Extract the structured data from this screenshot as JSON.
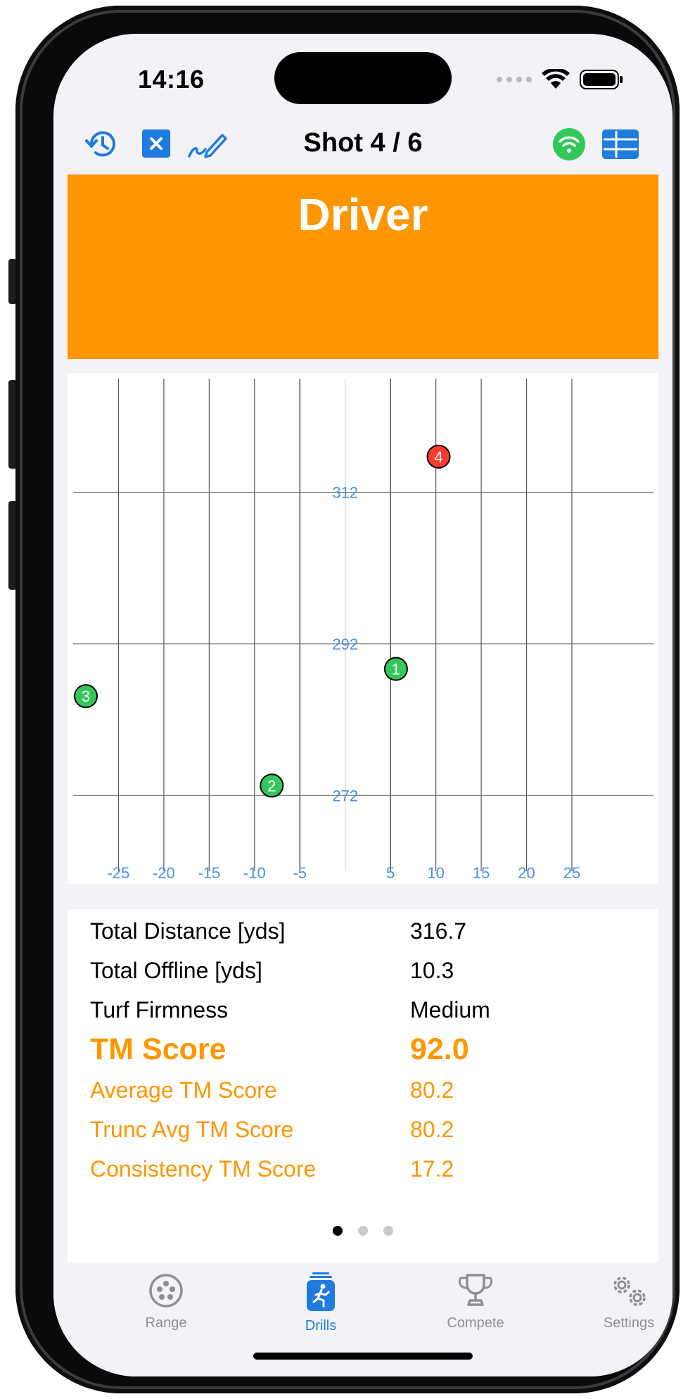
{
  "status_bar": {
    "time": "14:16"
  },
  "nav": {
    "title": "Shot 4 / 6"
  },
  "banner": {
    "club": "Driver"
  },
  "chart_data": {
    "type": "scatter",
    "x_ticks": [
      -25,
      -20,
      -15,
      -10,
      -5,
      5,
      10,
      15,
      20,
      25
    ],
    "y_ticks": [
      312,
      292,
      272
    ],
    "xlim": [
      -30,
      34
    ],
    "ylim": [
      262,
      327
    ],
    "grid": true,
    "points": [
      {
        "label": "1",
        "x": 5.6,
        "y": 288.7,
        "color": "#34c759"
      },
      {
        "label": "2",
        "x": -8.1,
        "y": 273.3,
        "color": "#34c759"
      },
      {
        "label": "3",
        "x": -28.6,
        "y": 285.1,
        "color": "#34c759"
      },
      {
        "label": "4",
        "x": 10.3,
        "y": 316.7,
        "color": "#ff3b30"
      }
    ]
  },
  "stats": [
    {
      "label": "Total Distance [yds]",
      "value": "316.7",
      "style": "normal"
    },
    {
      "label": "Total Offline [yds]",
      "value": "10.3",
      "style": "normal"
    },
    {
      "label": "Turf Firmness",
      "value": "Medium",
      "style": "normal"
    },
    {
      "label": "TM Score",
      "value": "92.0",
      "style": "big"
    },
    {
      "label": "Average TM Score",
      "value": "80.2",
      "style": "orange"
    },
    {
      "label": "Trunc Avg TM Score",
      "value": "80.2",
      "style": "orange"
    },
    {
      "label": "Consistency TM Score",
      "value": "17.2",
      "style": "orange"
    }
  ],
  "pager": {
    "count": 3,
    "active": 0
  },
  "tabs": [
    {
      "label": "Range",
      "icon": "range-icon",
      "active": false
    },
    {
      "label": "Drills",
      "icon": "drills-icon",
      "active": true
    },
    {
      "label": "Compete",
      "icon": "trophy-icon",
      "active": false
    },
    {
      "label": "Settings",
      "icon": "gears-icon",
      "active": false
    }
  ],
  "colors": {
    "accent": "#ff9500",
    "tint": "#1f7be0",
    "good": "#34c759",
    "bad": "#ff3b30",
    "axis_label": "#4a90e2"
  }
}
